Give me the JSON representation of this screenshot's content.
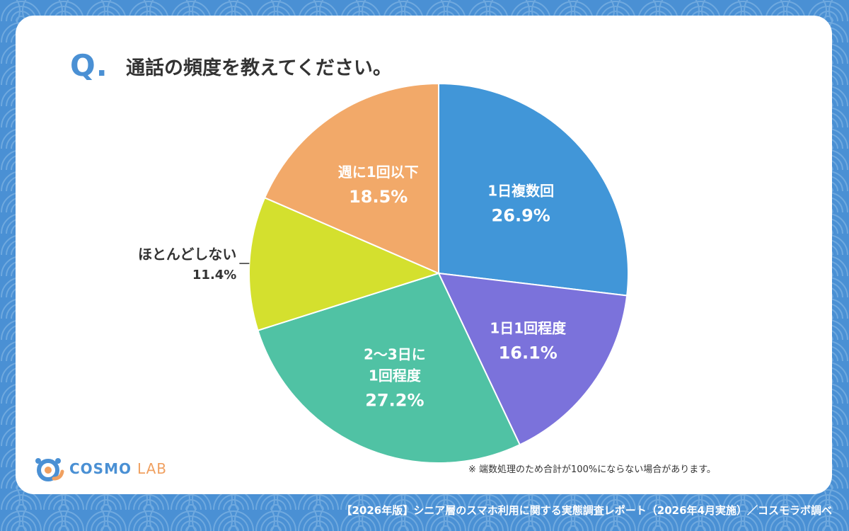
{
  "header": {
    "q_mark": "Q.",
    "question": "通話の頻度を教えてください。"
  },
  "chart_data": {
    "type": "pie",
    "title": "通話の頻度を教えてください。",
    "slices": [
      {
        "label": "1日複数回",
        "value": 26.9,
        "value_label": "26.9%",
        "color": "#4196d8",
        "label_position": "inside"
      },
      {
        "label": "1日1回程度",
        "value": 16.1,
        "value_label": "16.1%",
        "color": "#7b72db",
        "label_position": "inside"
      },
      {
        "label": "2〜3日に1回程度",
        "label_lines": [
          "2〜3日に",
          "1回程度"
        ],
        "value": 27.2,
        "value_label": "27.2%",
        "color": "#50c2a4",
        "label_position": "inside"
      },
      {
        "label": "ほとんどしない",
        "value": 11.4,
        "value_label": "11.4%",
        "color": "#d4e02e",
        "label_position": "outside-left"
      },
      {
        "label": "週に1回以下",
        "value": 18.5,
        "value_label": "18.5%",
        "color": "#f2a969",
        "label_position": "inside"
      }
    ],
    "start": "12 o'clock",
    "direction": "clockwise"
  },
  "footnote": "※ 端数処理のため合計が100%にならない場合があります。",
  "logo": {
    "text_main": "COSMO",
    "text_sub": "LAB"
  },
  "credit": "【2026年版】シニア層のスマホ利用に関する実態調査レポート（2026年4月実施）／コスモラボ調べ",
  "colors": {
    "background": "#4a90d4",
    "card": "#ffffff",
    "accent": "#4a90d4",
    "logo_accent": "#f0a060"
  }
}
